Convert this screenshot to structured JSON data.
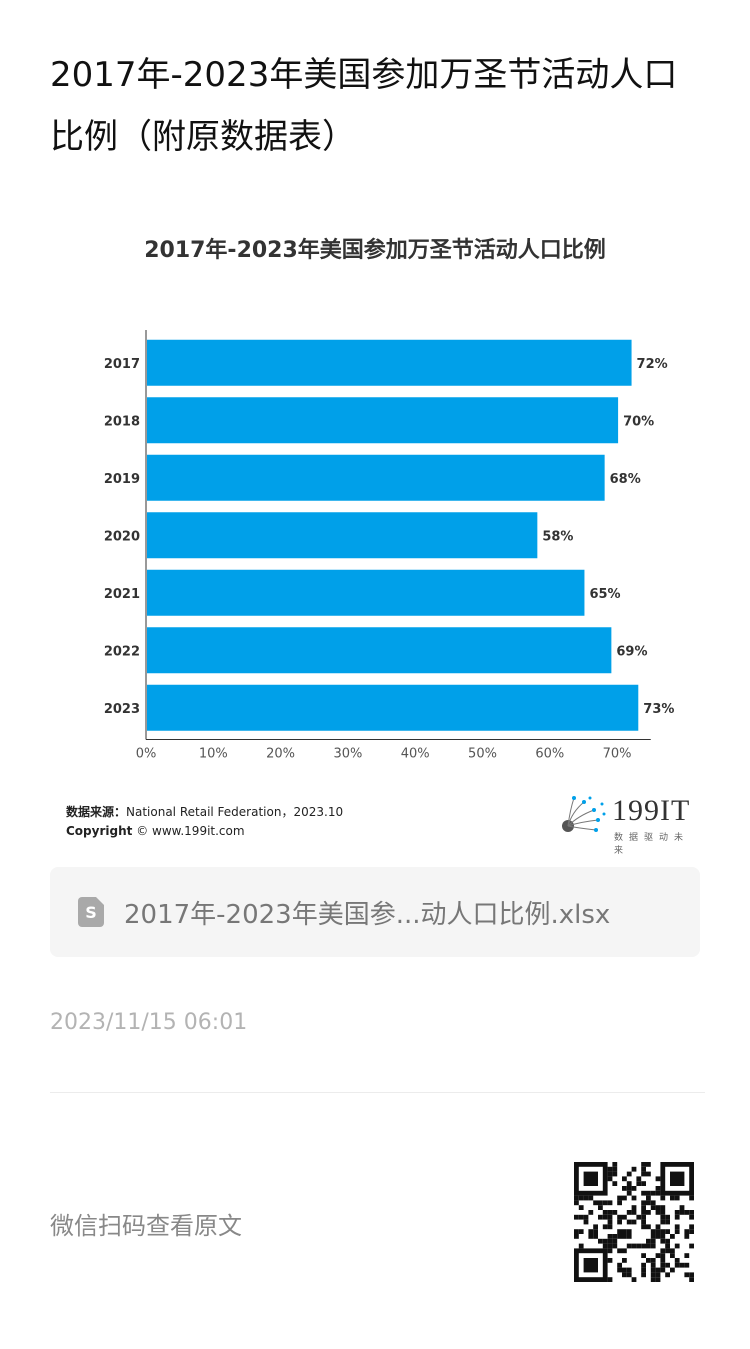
{
  "page": {
    "title": "2017年-2023年美国参加万圣节活动人口比例（附原数据表）"
  },
  "chart_data": {
    "type": "bar",
    "orientation": "horizontal",
    "title": "2017年-2023年美国参加万圣节活动人口比例",
    "categories": [
      "2017",
      "2018",
      "2019",
      "2020",
      "2021",
      "2022",
      "2023"
    ],
    "values": [
      72,
      70,
      68,
      58,
      65,
      69,
      73
    ],
    "data_labels": [
      "72%",
      "70%",
      "68%",
      "58%",
      "65%",
      "69%",
      "73%"
    ],
    "x_ticks": [
      "0%",
      "10%",
      "20%",
      "30%",
      "40%",
      "50%",
      "60%",
      "70%"
    ],
    "xlim": [
      0,
      75
    ],
    "grid": false,
    "bar_color": "#00a0e9"
  },
  "source": {
    "label": "数据来源：",
    "text": "National Retail Federation，2023.10",
    "copyright_label": "Copyright",
    "copyright_text": "© www.199it.com"
  },
  "logo": {
    "text": "199IT",
    "subtitle": "数据驱动未来"
  },
  "attachment": {
    "file_name": "2017年-2023年美国参...动人口比例.xlsx",
    "icon_glyph": "S"
  },
  "meta": {
    "timestamp": "2023/11/15 06:01",
    "scan_label": "微信扫码查看原文"
  },
  "colors": {
    "accent": "#00a0e9",
    "muted_text": "#888888"
  }
}
